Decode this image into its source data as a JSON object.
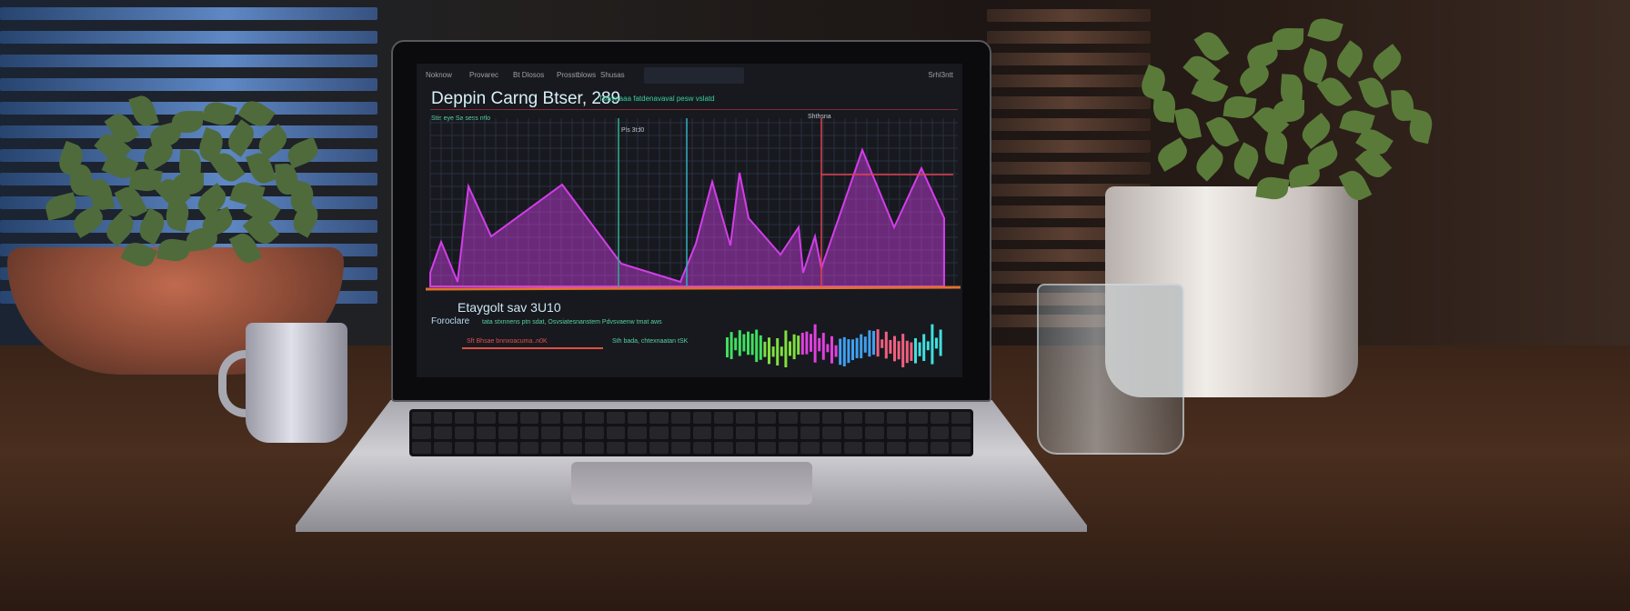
{
  "screen": {
    "nav_items": [
      "Noknow",
      "Provarec",
      "Bt Dlosos",
      "Prosstblows",
      "Shusas"
    ],
    "top_right": "Srhl3ntt",
    "title": "Deppin Carng Btser, 289",
    "subtitle": "Tslavnaaa fatdenavaval pesw vslatd",
    "chart_note_left": "Stis eye Sa sess ntlo",
    "chart_note_mid": "Pls 3td0",
    "chart_note_right": "Shthsna",
    "section2_title": "Etaygolt sav 3U10",
    "section2_label": "Foroclare",
    "section2_line": "tata stxnnens ptn sdat, Osvsiatesnanstem Pdvsvaenw tmat aws",
    "row1": "Sft Bhsae bnnxoacuma..n0K",
    "row2": "Sth bada, chtexnaatan tSK",
    "colors": {
      "area": "#d23ee8",
      "axis": "#e07030",
      "accent": "#30d0a0"
    }
  }
}
